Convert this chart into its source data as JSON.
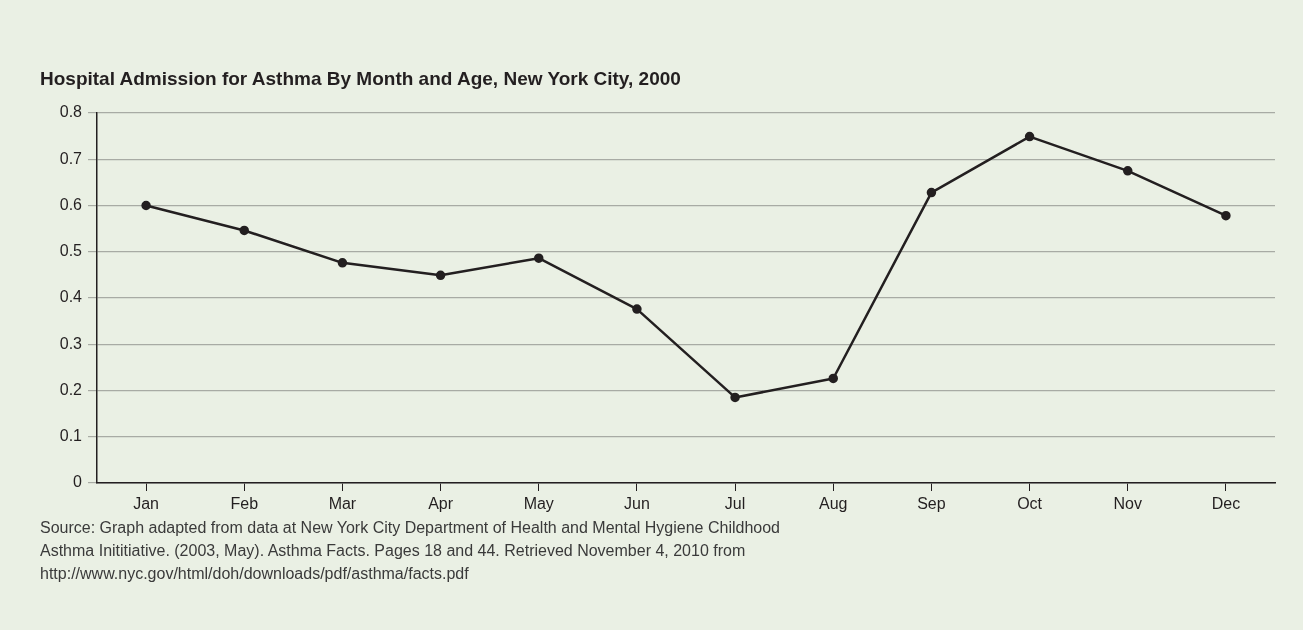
{
  "chart_data": {
    "type": "line",
    "title": "Hospital Admission for Asthma By Month and Age, New York City, 2000",
    "categories": [
      "Jan",
      "Feb",
      "Mar",
      "Apr",
      "May",
      "Jun",
      "Jul",
      "Aug",
      "Sep",
      "Oct",
      "Nov",
      "Dec"
    ],
    "series": [
      {
        "color": "#231f20",
        "values": [
          0.6,
          0.546,
          0.476,
          0.449,
          0.486,
          0.376,
          0.185,
          0.226,
          0.628,
          0.749,
          0.675,
          0.578
        ]
      }
    ],
    "ylim": [
      0,
      0.8
    ],
    "yticks": [
      0,
      0.1,
      0.2,
      0.3,
      0.4,
      0.5,
      0.6,
      0.7,
      0.8
    ],
    "grid": "y",
    "marker": "circle",
    "legend": false,
    "annotations": [
      "Source:  Graph adapted from data at New York City Department of Health and Mental Hygiene Childhood Asthma Inititiative. (2003, May). Asthma Facts.  Pages 18 and 44.  Retrieved November 4, 2010 from http://www.nyc.gov/html/doh/downloads/pdf/asthma/facts.pdf"
    ]
  }
}
